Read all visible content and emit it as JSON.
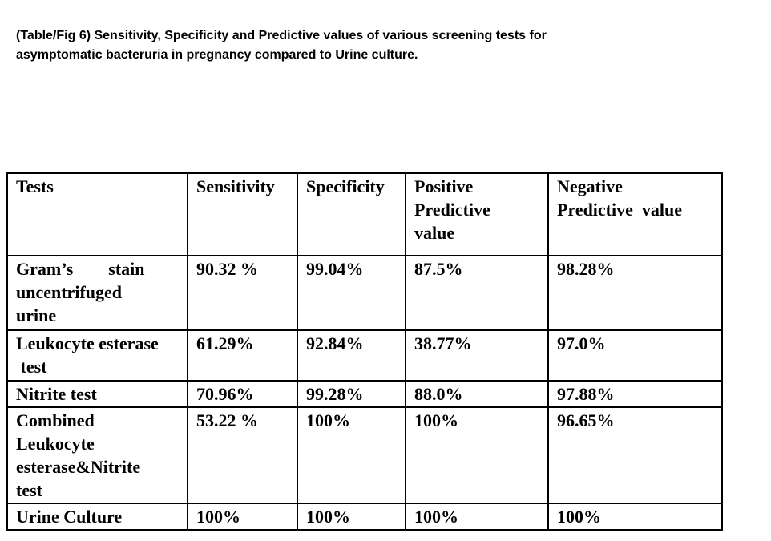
{
  "title": "(Table/Fig 6) Sensitivity, Specificity and Predictive values of various screening tests for\nasymptomatic bacteruria in pregnancy compared to Urine culture.",
  "colors": {
    "text": "#000000",
    "background": "#ffffff",
    "table_border": "#000000"
  },
  "table": {
    "headers": [
      "Tests",
      "Sensitivity",
      "Specificity",
      "Positive\nPredictive\nvalue",
      "Negative\nPredictive  value"
    ],
    "rows": [
      [
        "Gram’s        stain\nuncentrifuged\nurine",
        "90.32 %",
        "99.04%",
        "87.5%",
        "98.28%"
      ],
      [
        "Leukocyte esterase\n test",
        "61.29%",
        "92.84%",
        "38.77%",
        "97.0%"
      ],
      [
        "Nitrite test",
        "70.96%",
        "99.28%",
        "88.0%",
        "97.88%"
      ],
      [
        "Combined\nLeukocyte\nesterase&Nitrite\ntest",
        "53.22 %",
        "100%",
        "100%",
        "96.65%"
      ],
      [
        "Urine Culture",
        "100%",
        "100%",
        "100%",
        "100%"
      ]
    ]
  }
}
